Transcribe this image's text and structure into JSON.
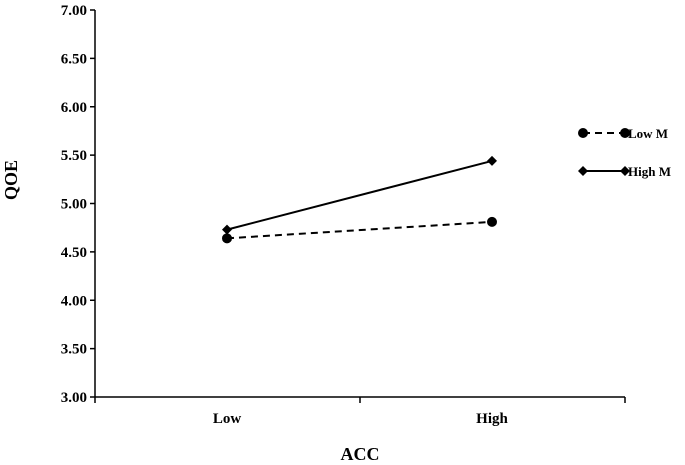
{
  "chart_data": {
    "type": "line",
    "xlabel": "ACC",
    "ylabel": "QOE",
    "categories": [
      "Low",
      "High"
    ],
    "ylim": [
      3.0,
      7.0
    ],
    "yticks": [
      "3.00",
      "3.50",
      "4.00",
      "4.50",
      "5.00",
      "5.50",
      "6.00",
      "6.50",
      "7.00"
    ],
    "grid": false,
    "legend_position": "right",
    "series": [
      {
        "name": "Low M",
        "values": [
          4.64,
          4.81
        ],
        "marker": "circle",
        "line_style": "dashed",
        "color": "#000000"
      },
      {
        "name": "High M",
        "values": [
          4.73,
          5.44
        ],
        "marker": "diamond",
        "line_style": "solid",
        "color": "#000000"
      }
    ]
  }
}
